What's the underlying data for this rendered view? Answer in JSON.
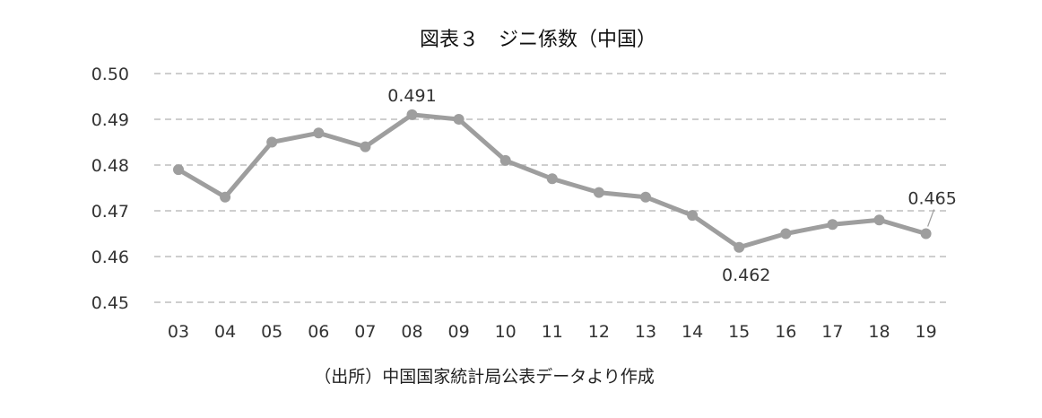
{
  "chart_data": {
    "type": "line",
    "title": "図表３　ジニ係数（中国）",
    "source": "（出所）中国国家統計局公表データより作成",
    "categories": [
      "03",
      "04",
      "05",
      "06",
      "07",
      "08",
      "09",
      "10",
      "11",
      "12",
      "13",
      "14",
      "15",
      "16",
      "17",
      "18",
      "19"
    ],
    "series": [
      {
        "values": [
          0.479,
          0.473,
          0.485,
          0.487,
          0.484,
          0.491,
          0.49,
          0.481,
          0.477,
          0.474,
          0.473,
          0.469,
          0.462,
          0.465,
          0.467,
          0.468,
          0.465
        ]
      }
    ],
    "ylim": [
      0.45,
      0.5
    ],
    "yticks": [
      "0.45",
      "0.46",
      "0.47",
      "0.48",
      "0.49",
      "0.50"
    ],
    "data_labels": [
      {
        "category": "08",
        "text": "0.491"
      },
      {
        "category": "15",
        "text": "0.462"
      },
      {
        "category": "19",
        "text": "0.465"
      }
    ],
    "grid": true,
    "legend": "none",
    "colors": {
      "line": "#9e9e9e",
      "grid": "#bdbdbd"
    }
  }
}
